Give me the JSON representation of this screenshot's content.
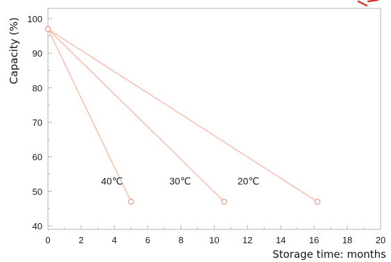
{
  "chart_data": {
    "type": "line",
    "title": "",
    "xlabel": "Storage time: months",
    "ylabel": "Capacity (%)",
    "xlim": [
      0,
      20
    ],
    "ylim": [
      39,
      103
    ],
    "x_ticks": [
      0,
      2,
      4,
      6,
      8,
      10,
      12,
      14,
      16,
      18,
      20
    ],
    "y_ticks": [
      40,
      50,
      60,
      70,
      80,
      90,
      100
    ],
    "grid": false,
    "legend": "none",
    "series": [
      {
        "name": "40℃",
        "x": [
          0,
          5
        ],
        "y": [
          97,
          47
        ]
      },
      {
        "name": "30℃",
        "x": [
          0,
          10.6
        ],
        "y": [
          97,
          47
        ]
      },
      {
        "name": "20℃",
        "x": [
          0,
          16.2
        ],
        "y": [
          97,
          47
        ]
      }
    ],
    "series_label_anchor": {
      "40℃": [
        3.2,
        52
      ],
      "30℃": [
        7.3,
        52
      ],
      "20℃": [
        11.4,
        52
      ]
    },
    "line_color": "#f7b4a0",
    "marker_color": "#f29a83",
    "axis_color": "#b0b0b0",
    "accent_color": "#d0342c"
  }
}
